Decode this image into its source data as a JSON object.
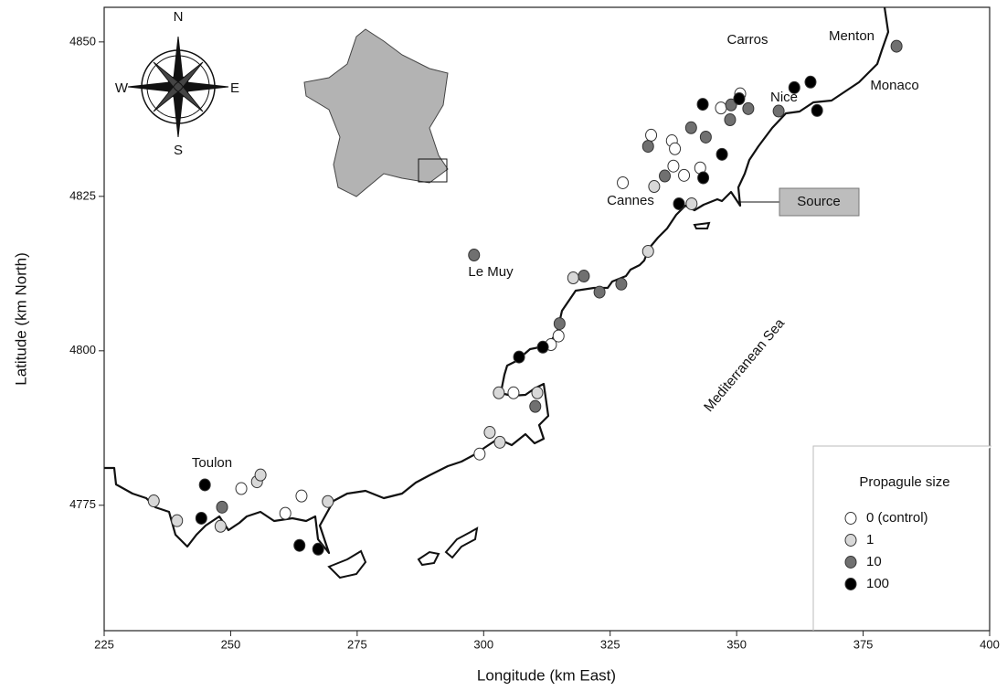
{
  "chart_data": {
    "type": "scatter",
    "xlabel": "Longitude (km East)",
    "ylabel": "Latitude (km North)",
    "xlim": [
      225,
      400
    ],
    "ylim": [
      4754.7,
      4855.6
    ],
    "xticks": [
      225,
      250,
      275,
      300,
      325,
      350,
      375,
      400
    ],
    "yticks": [
      4775,
      4800,
      4825,
      4850
    ],
    "legend_title": "Propagule size",
    "legend": "lower right",
    "annotations": [
      "Carros",
      "Menton",
      "Nice",
      "Monaco",
      "Cannes",
      "Source",
      "Le Muy",
      "Toulon",
      "Mediterranean Sea",
      "N",
      "S",
      "W",
      "E"
    ],
    "series": [
      {
        "name": "0 (control)",
        "color": "#ffffff",
        "x": [
          252.1,
          260.8,
          264,
          299.2,
          305.9,
          313.3,
          314.8,
          327.5,
          333.1,
          337.2,
          337.8,
          337.5,
          339.6,
          342.8,
          346.9,
          350.7
        ],
        "values": [
          4777.7,
          4773.7,
          4776.5,
          4783.3,
          4793.2,
          4801,
          4802.4,
          4827.2,
          4834.9,
          4834,
          4832.7,
          4829.9,
          4828.4,
          4829.6,
          4839.3,
          4841.6
        ]
      },
      {
        "name": "1",
        "color": "#d8d8d8",
        "x": [
          234.8,
          239.4,
          248,
          255.2,
          255.9,
          269.2,
          301.2,
          303.2,
          303,
          310.6,
          317.7,
          332.5,
          333.7,
          341.1
        ],
        "values": [
          4775.7,
          4772.5,
          4771.6,
          4778.8,
          4779.9,
          4775.6,
          4786.8,
          4785.2,
          4793.2,
          4793.2,
          4811.8,
          4816.1,
          4826.6,
          4823.8
        ]
      },
      {
        "name": "10",
        "color": "#707070",
        "x": [
          248.3,
          298.1,
          310.2,
          315,
          319.8,
          322.9,
          327.2,
          335.8,
          332.5,
          341,
          343.9,
          348.9,
          348.7,
          352.3,
          358.3,
          381.6
        ],
        "values": [
          4774.7,
          4815.5,
          4791,
          4804.4,
          4812.1,
          4809.5,
          4810.8,
          4828.3,
          4833.1,
          4836.1,
          4834.6,
          4839.8,
          4837.4,
          4839.2,
          4838.8,
          4849.3
        ]
      },
      {
        "name": "100",
        "color": "#000000",
        "x": [
          244.9,
          244.2,
          263.6,
          267.3,
          307,
          311.7,
          338.6,
          343.4,
          343.3,
          347.1,
          350.5,
          361.4,
          364.6,
          365.9
        ],
        "values": [
          4778.3,
          4772.9,
          4768.5,
          4767.9,
          4799,
          4800.6,
          4823.8,
          4828,
          4839.9,
          4831.8,
          4840.8,
          4842.6,
          4843.5,
          4838.9
        ]
      }
    ]
  }
}
